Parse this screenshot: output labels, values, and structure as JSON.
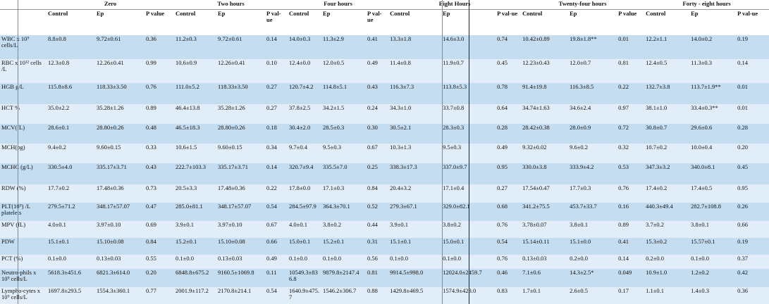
{
  "header": {
    "groups": [
      "Zero",
      "Two hours",
      "Four hours",
      "Eight Hours",
      "Twenty-four hours",
      "Forty - eight hours"
    ],
    "columns": [
      "Control",
      "Ep",
      "P value",
      "Control",
      "Ep",
      "P val-ue",
      "Control",
      "Ep",
      "P val-ue",
      "Control",
      "Ep",
      "P val-ue",
      "Control",
      "Ep",
      "P value",
      "Control",
      "Ep",
      "P val-ue"
    ]
  },
  "table": {
    "rows": [
      {
        "label": "WBC x 10⁹ cells/L",
        "cells": [
          "8.8±0.8",
          "9.72±0.61",
          "0.36",
          "11.2±0.3",
          "9.72±0.61",
          "0.14",
          "14.0±0.3",
          "11.3±2.9",
          "0.41",
          "13.3±1.8",
          "14.6±3.0",
          "0.74",
          "10.42±0.89",
          "19.8±1.8**",
          "0.01",
          "12.2±1.1",
          "14.0±0.2",
          "0.19"
        ]
      },
      {
        "label": "RBC x 10¹² cells /L",
        "cells": [
          "12.3±0.8",
          "12.26±0.41",
          "0.99",
          "10.6±0.9",
          "12.26±0.41",
          "0.10",
          "12.4±0.0",
          "12.0±0.5",
          "0.49",
          "11.4±0.8",
          "11.9±0.7",
          "0.45",
          "12.23±0.43",
          "12.0±0.7",
          "0.81",
          "12.4±0.5",
          "11.3±0.3",
          "0.14"
        ]
      },
      {
        "label": "HGB g/L",
        "cells": [
          "115.8±8.6",
          "118.33±3.50",
          "0.76",
          "111.0±5.2",
          "118.33±3.50",
          "0.27",
          "120.7±4.2",
          "114.8±5.1",
          "0.43",
          "116.3±7.3",
          "113.8±5.3",
          "0.78",
          "91.4±19.8",
          "116.3±8.5",
          "0.22",
          "132.7±3.8",
          "113.7±1.9**",
          "0.01"
        ]
      },
      {
        "label": "HCT %",
        "cells": [
          "35.0±2.2",
          "35.28±1.26",
          "0.89",
          "46.4±13.8",
          "35.28±1.26",
          "0.27",
          "37.8±2.5",
          "34.2±1.5",
          "0.24",
          "34.3±1.0",
          "33.7±0.8",
          "0.64",
          "34.74±1.63",
          "34.6±2.4",
          "0.97",
          "38.1±1.0",
          "33.4±0.3**",
          "0.01"
        ]
      },
      {
        "label": "MCV(fL)",
        "cells": [
          "28.6±0.1",
          "28.80±0.26",
          "0.48",
          "46.5±18.3",
          "28.80±0.26",
          "0.18",
          "30.4±2.0",
          "28.5±0.3",
          "0.30",
          "30.5±2.1",
          "28.3±0.3",
          "0.28",
          "28.42±0.38",
          "28.0±0.9",
          "0.72",
          "30.8±0.7",
          "29.6±0.6",
          "0.28"
        ]
      },
      {
        "label": "MCH(pg)",
        "cells": [
          "9.4±0.2",
          "9.60±0.15",
          "0.33",
          "10.6±1.5",
          "9.60±0.15",
          "0.34",
          "9.7±0.4",
          "9.5±0.3",
          "0.67",
          "10.3±1.3",
          "9.5±0.3",
          "0.49",
          "9.32±0.02",
          "9.6±0.2",
          "0.32",
          "10.7±0.2",
          "10.0±0.4",
          "0.20"
        ]
      },
      {
        "label": "MCHC (g/L)",
        "cells": [
          "330.5±4.0",
          "335.17±3.71",
          "0.43",
          "222.7±103.3",
          "335.17±3.71",
          "0.14",
          "320.7±9.4",
          "335.5±7.0",
          "0.25",
          "338.3±17.3",
          "337.0±9.7",
          "0.95",
          "330.0±3.8",
          "333.9±4.2",
          "0.53",
          "347.3±3.2",
          "340.0±8.1",
          "0.45"
        ]
      },
      {
        "label": "RDW (%)",
        "cells": [
          "17.7±0.2",
          "17.48±0.36",
          "0.73",
          "20.5±3.3",
          "17.48±0.36",
          "0.22",
          "17.8±0.0",
          "17.1±0.3",
          "0.84",
          "20.4±3.2",
          "17.1±0.4",
          "0.27",
          "17.54±0.47",
          "17.7±0.3",
          "0.76",
          "17.4±0.2",
          "17.4±0.5",
          "0.95"
        ]
      },
      {
        "label": "PLT(10⁹) /L platelets",
        "cells": [
          "279.5±71.2",
          "348.17±57.07",
          "0.47",
          "285.0±81.1",
          "348.17±57.07",
          "0.54",
          "284.5±97.9",
          "364.3±70.1",
          "0.52",
          "279.3±67.1",
          "329.0±82.1",
          "0.68",
          "341.2±75.5",
          "453.7±33.7",
          "0.16",
          "440.3±49.4",
          "282.7±108.8",
          "0.26"
        ]
      },
      {
        "label": "MPV (fL)",
        "cells": [
          "4.0±0.1",
          "3.97±0.10",
          "0.69",
          "3.9±0.1",
          "3.97±0.10",
          "0.67",
          "4.0±0.1",
          "3.8±0.2",
          "0.44",
          "3.9±0.1",
          "3.8±0.2",
          "0.76",
          "3.78±0.07",
          "3.8±0.1",
          "0.89",
          "3.7±0.2",
          "3.8±0.1",
          "0.66"
        ]
      },
      {
        "label": "PDW",
        "cells": [
          "15.1±0.1",
          "15.10±0.08",
          "0.84",
          "15.2±0.1",
          "15.10±0.08",
          "0.66",
          "15.0±0.1",
          "15.2±0.1",
          "0.31",
          "15.1±0.1",
          "15.0±0.1",
          "0.54",
          "15.14±0.11",
          "15.1±0.0",
          "0.41",
          "15.3±0.2",
          "15.57±0.1",
          "0.19"
        ]
      },
      {
        "label": "PCT (%)",
        "cells": [
          "0.1±0.0",
          "0.13±0.03",
          "0.55",
          "0.1±0.0",
          "0.13±0.03",
          "0.49",
          "0.1±0.0",
          "0.1±0.0",
          "0.56",
          "0.1±0.0",
          "0.1±0.0",
          "0.76",
          "0.13±0.03",
          "0.2±0.0",
          "0.14",
          "0.2±0.0",
          "0.1±0.0",
          "0.37"
        ]
      },
      {
        "label": "Neutro-phils x 10⁹ cells/L",
        "cells": [
          "5618.3±451.6",
          "6821.3±614.0",
          "0.20",
          "6848.8±675.2",
          "9160.5±1069.8",
          "0.11",
          "10549.3±836.8",
          "9879.8±2147.4",
          "0.81",
          "9914.5±998.0",
          "12024.0±2459.7",
          "0.46",
          "7.1±0.6",
          "14.3±2.5*",
          "0.049",
          "10.9±1.0",
          "1.2±0.2",
          "0.42"
        ]
      },
      {
        "label": "Lympho-cytes x 10⁹ cells/L",
        "cells": [
          "1697.8±293.5",
          "1554.3±360.1",
          "0.77",
          "2001.9±117.2",
          "2170.8±214.1",
          "0.54",
          "1640.9±475.7",
          "1546.2±306.7",
          "0.88",
          "1429.8±469.5",
          "1574.9±423.0",
          "0.83",
          "1.7±0.1",
          "2.6±0.5",
          "0.17",
          "1.1±0.1",
          "1.4±0.3",
          "0.36"
        ]
      }
    ]
  }
}
